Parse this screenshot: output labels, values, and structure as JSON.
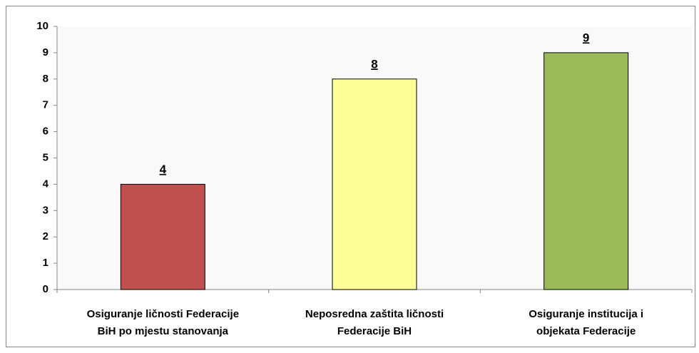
{
  "chart_data": {
    "type": "bar",
    "categories": [
      [
        "Osiguranje ličnosti Federacije",
        "BiH po mjestu stanovanja"
      ],
      [
        "Neposredna zaštita ličnosti",
        "Federacije BiH"
      ],
      [
        "Osiguranje institucija i",
        "objekata Federacije"
      ]
    ],
    "values": [
      4,
      8,
      9
    ],
    "colors": [
      "#c0504d",
      "#ffff99",
      "#9bbb59"
    ],
    "ylim": [
      0,
      10
    ],
    "yticks": [
      0,
      1,
      2,
      3,
      4,
      5,
      6,
      7,
      8,
      9,
      10
    ]
  }
}
